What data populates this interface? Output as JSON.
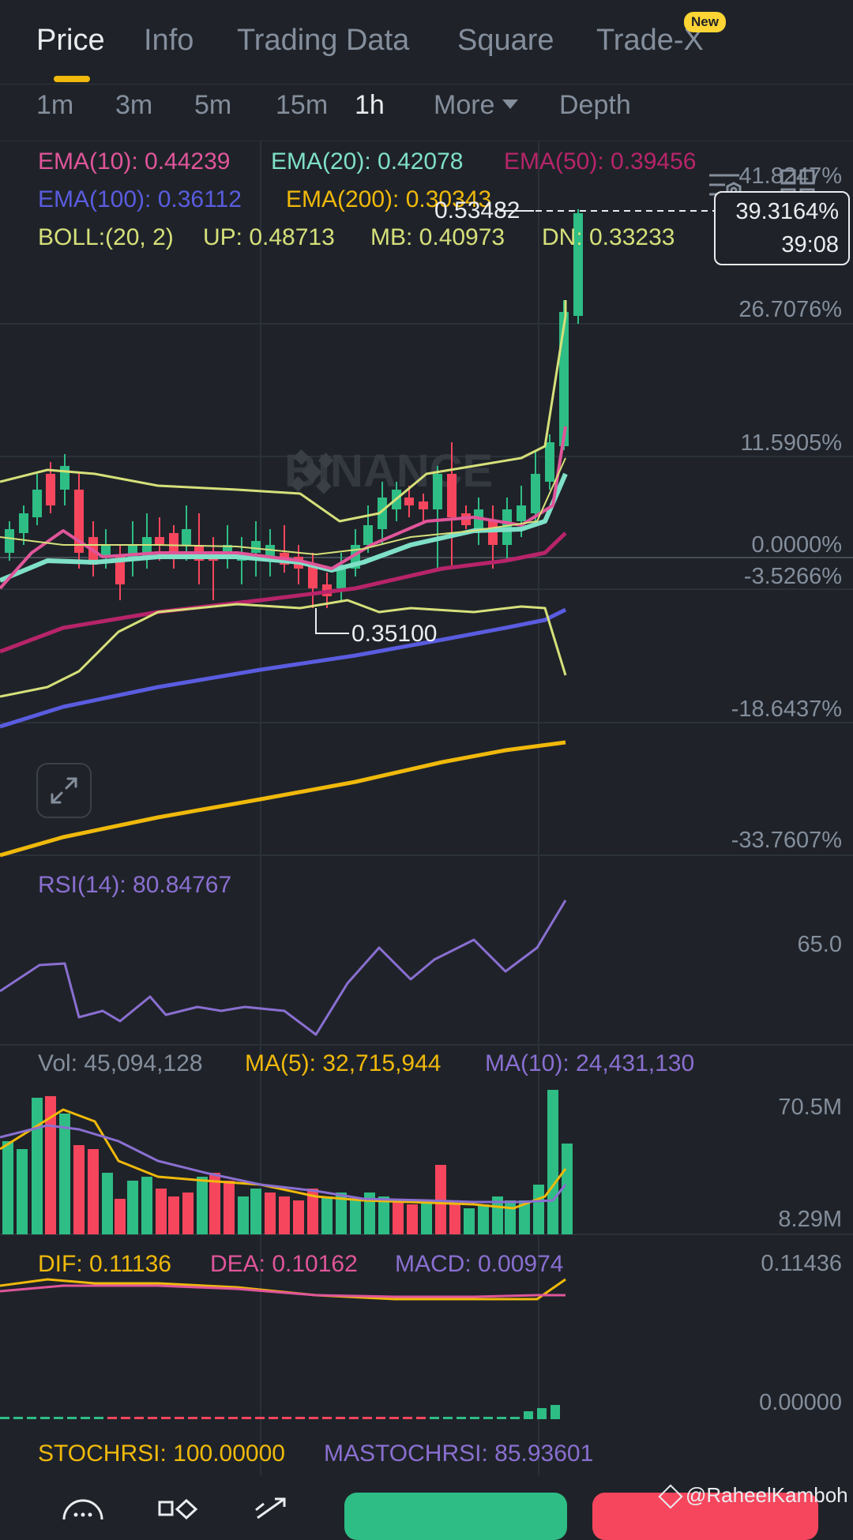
{
  "tabs": [
    {
      "label": "Price",
      "active": true
    },
    {
      "label": "Info"
    },
    {
      "label": "Trading Data"
    },
    {
      "label": "Square"
    },
    {
      "label": "Trade-X",
      "badge": "New"
    }
  ],
  "intervals": {
    "items": [
      "1m",
      "3m",
      "5m",
      "15m",
      "1h"
    ],
    "active": "1h",
    "more": "More",
    "depth": "Depth"
  },
  "indicators": {
    "ema10": "EMA(10): 0.44239",
    "ema20": "EMA(20): 0.42078",
    "ema50": "EMA(50): 0.39456",
    "ema100": "EMA(100): 0.36112",
    "ema200": "EMA(200): 0.30343",
    "boll": "BOLL:(20, 2)",
    "boll_up": "UP: 0.48713",
    "boll_mb": "MB: 0.40973",
    "boll_dn": "DN: 0.33233"
  },
  "price_axis": {
    "labels": [
      "41.8247%",
      "26.7076%",
      "11.5905%",
      "0.0000%",
      "-3.5266%",
      "-18.6437%",
      "-33.7607%"
    ]
  },
  "current": {
    "change": "39.3164%",
    "countdown": "39:08",
    "high_label": "0.53482",
    "low_label": "0.35100"
  },
  "watermark": "BINANCE",
  "rsi": {
    "legend": "RSI(14): 80.84767",
    "axis": "65.0"
  },
  "volume": {
    "vol": "Vol: 45,094,128",
    "ma5": "MA(5): 32,715,944",
    "ma10": "MA(10): 24,431,130",
    "axis_top": "70.5M",
    "axis_bottom": "8.29M"
  },
  "macd": {
    "dif": "DIF: 0.11136",
    "dea": "DEA: 0.10162",
    "macd": "MACD: 0.00974",
    "axis_top": "0.11436",
    "axis_bottom": "0.00000"
  },
  "stoch": {
    "stochrsi": "STOCHRSI: 100.00000",
    "mastochrsi": "MASTOCHRSI: 85.93601"
  },
  "attribution": "@RaheelKamboh",
  "colors": {
    "up": "#2ebd85",
    "down": "#f6465d",
    "ema10": "#e0559a",
    "ema20": "#7fe0c8",
    "ema50": "#b7246a",
    "ema100": "#5a5ce0",
    "ema200": "#f0b90b",
    "boll": "#d6e07a",
    "rsi": "#8a6fd1",
    "accent": "#f0b90b"
  }
}
